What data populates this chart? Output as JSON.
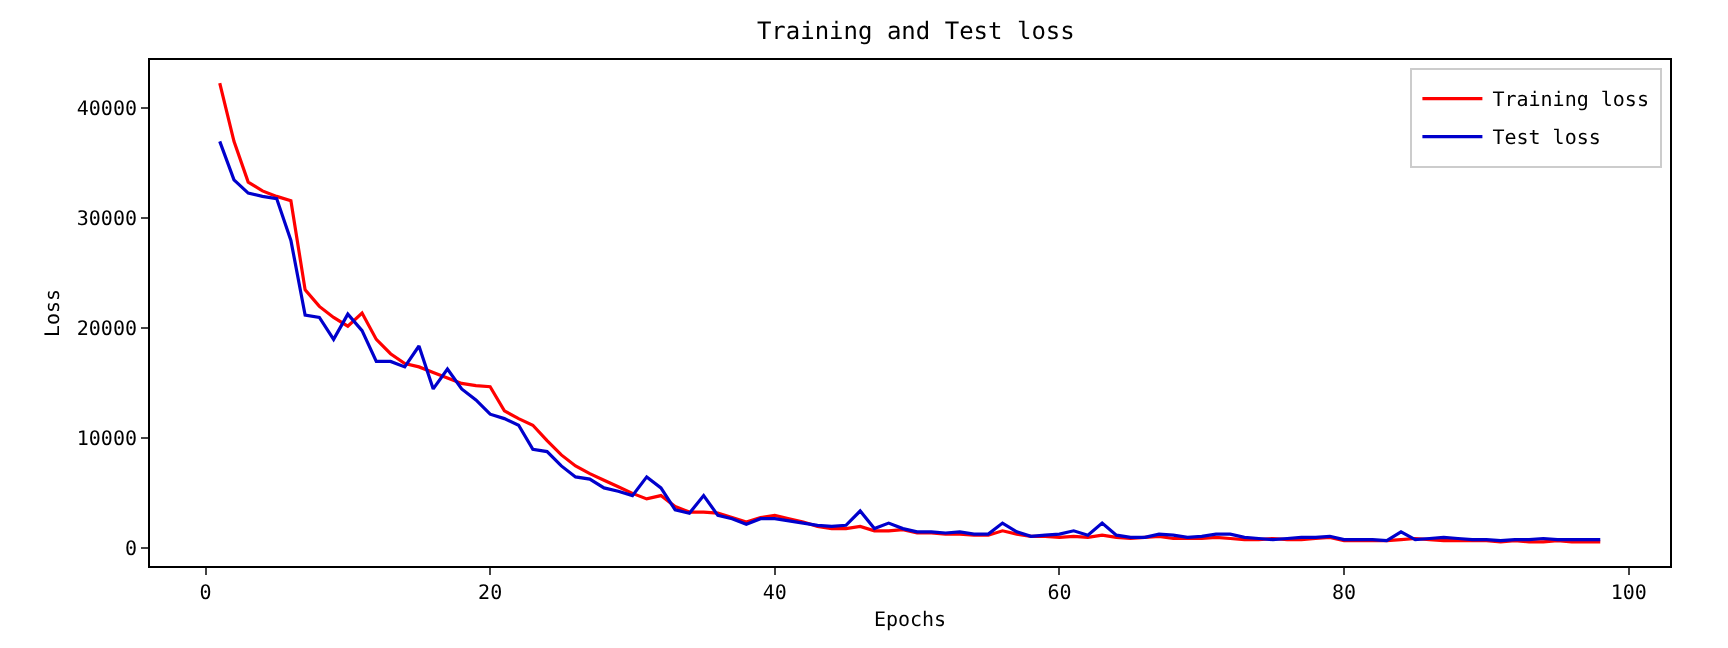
{
  "chart_data": {
    "type": "line",
    "title": "Training and Test loss",
    "xlabel": "Epochs",
    "ylabel": "Loss",
    "x": [
      1,
      2,
      3,
      4,
      5,
      6,
      7,
      8,
      9,
      10,
      11,
      12,
      13,
      14,
      15,
      16,
      17,
      18,
      19,
      20,
      21,
      22,
      23,
      24,
      25,
      26,
      27,
      28,
      29,
      30,
      31,
      32,
      33,
      34,
      35,
      36,
      37,
      38,
      39,
      40,
      41,
      42,
      43,
      44,
      45,
      46,
      47,
      48,
      49,
      50,
      51,
      52,
      53,
      54,
      55,
      56,
      57,
      58,
      59,
      60,
      61,
      62,
      63,
      64,
      65,
      66,
      67,
      68,
      69,
      70,
      71,
      72,
      73,
      74,
      75,
      76,
      77,
      78,
      79,
      80,
      81,
      82,
      83,
      84,
      85,
      86,
      87,
      88,
      89,
      90,
      91,
      92,
      93,
      94,
      95,
      96,
      97,
      98
    ],
    "series": [
      {
        "name": "Training loss",
        "color": "#ff0000",
        "values": [
          42300,
          37000,
          33300,
          32500,
          32000,
          31600,
          23500,
          22000,
          21000,
          20200,
          21400,
          19000,
          17700,
          16800,
          16500,
          16000,
          15500,
          15000,
          14800,
          14700,
          12500,
          11800,
          11200,
          9800,
          8500,
          7500,
          6800,
          6200,
          5600,
          5000,
          4500,
          4800,
          3800,
          3300,
          3300,
          3200,
          2800,
          2400,
          2800,
          3000,
          2700,
          2400,
          2000,
          1800,
          1800,
          2000,
          1600,
          1600,
          1700,
          1400,
          1400,
          1300,
          1300,
          1200,
          1200,
          1600,
          1300,
          1100,
          1100,
          1000,
          1100,
          1000,
          1200,
          1000,
          900,
          1000,
          1100,
          900,
          900,
          900,
          1000,
          900,
          800,
          800,
          900,
          800,
          800,
          900,
          1000,
          700,
          700,
          700,
          700,
          800,
          900,
          800,
          700,
          700,
          700,
          700,
          600,
          700,
          600,
          600,
          700,
          600,
          600,
          600
        ]
      },
      {
        "name": "Test loss",
        "color": "#0000cc",
        "values": [
          37000,
          33500,
          32300,
          32000,
          31800,
          28000,
          21200,
          21000,
          19000,
          21300,
          19800,
          17000,
          17000,
          16500,
          18400,
          14500,
          16300,
          14500,
          13500,
          12200,
          11800,
          11200,
          9000,
          8800,
          7500,
          6500,
          6300,
          5500,
          5200,
          4800,
          6500,
          5500,
          3500,
          3200,
          4800,
          3000,
          2700,
          2200,
          2700,
          2700,
          2500,
          2300,
          2100,
          2000,
          2100,
          3400,
          1800,
          2300,
          1800,
          1500,
          1500,
          1400,
          1500,
          1300,
          1300,
          2300,
          1500,
          1100,
          1200,
          1300,
          1600,
          1200,
          2300,
          1200,
          1000,
          1000,
          1300,
          1200,
          1000,
          1100,
          1300,
          1300,
          1000,
          900,
          800,
          900,
          1000,
          1000,
          1100,
          800,
          800,
          800,
          700,
          1500,
          800,
          900,
          1000,
          900,
          800,
          800,
          700,
          800,
          800,
          900,
          800,
          800,
          800,
          800
        ]
      }
    ],
    "xlim": [
      -3.9,
      102.9
    ],
    "xticks": [
      0,
      20,
      40,
      60,
      80,
      100
    ],
    "ylim": [
      -1600,
      44400
    ],
    "yticks": [
      0,
      10000,
      20000,
      30000,
      40000
    ],
    "grid": false,
    "legend": "top right",
    "marker": "none",
    "line_style": "solid"
  }
}
